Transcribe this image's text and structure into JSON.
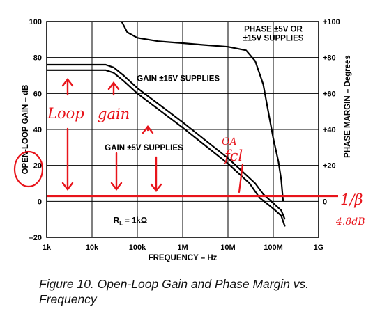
{
  "caption": "Figure 10.  Open-Loop Gain and Phase Margin vs. Frequency",
  "chart_data": {
    "type": "line",
    "xlabel": "FREQUENCY – Hz",
    "ylabel_left": "OPEN-LOOP GAIN – dB",
    "ylabel_right": "PHASE MARGIN – Degrees",
    "x_scale": "log",
    "xlim": [
      1000,
      1000000000
    ],
    "ylim_left": [
      -20,
      100
    ],
    "ylim_right": [
      -20,
      100
    ],
    "x_ticks": [
      {
        "value": 1000,
        "label": "1k"
      },
      {
        "value": 10000,
        "label": "10k"
      },
      {
        "value": 100000,
        "label": "100k"
      },
      {
        "value": 1000000,
        "label": "1M"
      },
      {
        "value": 10000000,
        "label": "10M"
      },
      {
        "value": 100000000,
        "label": "100M"
      },
      {
        "value": 1000000000,
        "label": "1G"
      }
    ],
    "y_ticks_left": [
      {
        "value": 100,
        "label": "100"
      },
      {
        "value": 80,
        "label": "80"
      },
      {
        "value": 60,
        "label": "60"
      },
      {
        "value": 40,
        "label": "40"
      },
      {
        "value": 20,
        "label": "20"
      },
      {
        "value": 0,
        "label": "0"
      },
      {
        "value": -20,
        "label": "–20"
      }
    ],
    "y_ticks_right": [
      {
        "value": 100,
        "label": "+100"
      },
      {
        "value": 80,
        "label": "+80"
      },
      {
        "value": 60,
        "label": "+60"
      },
      {
        "value": 40,
        "label": "+40"
      },
      {
        "value": 20,
        "label": "+20"
      },
      {
        "value": 0,
        "label": "0"
      }
    ],
    "grid": true,
    "series": [
      {
        "key": "gain_15v",
        "label": "GAIN ±15V SUPPLIES",
        "axis": "left",
        "points": [
          [
            1000,
            76
          ],
          [
            20000,
            76
          ],
          [
            30000,
            74.5
          ],
          [
            50000,
            70
          ],
          [
            100000,
            63
          ],
          [
            1000000,
            44
          ],
          [
            10000000,
            24
          ],
          [
            40000000,
            10
          ],
          [
            60000000,
            4
          ],
          [
            100000000,
            -1
          ],
          [
            150000000,
            -5
          ],
          [
            180000000,
            -10
          ]
        ]
      },
      {
        "key": "gain_5v",
        "label": "GAIN ±5V SUPPLIES",
        "axis": "left",
        "points": [
          [
            1000,
            73
          ],
          [
            20000,
            73
          ],
          [
            30000,
            71.5
          ],
          [
            50000,
            67
          ],
          [
            100000,
            60
          ],
          [
            1000000,
            41
          ],
          [
            10000000,
            21
          ],
          [
            30000000,
            10
          ],
          [
            50000000,
            2
          ],
          [
            100000000,
            -4
          ],
          [
            150000000,
            -8
          ],
          [
            180000000,
            -14
          ]
        ]
      },
      {
        "key": "phase",
        "label": "PHASE ±5V OR ±15V SUPPLIES",
        "axis": "right",
        "points": [
          [
            45000,
            100
          ],
          [
            60000,
            94
          ],
          [
            100000,
            91
          ],
          [
            300000,
            89
          ],
          [
            1000000,
            88
          ],
          [
            3000000,
            87
          ],
          [
            10000000,
            86
          ],
          [
            25000000,
            84
          ],
          [
            40000000,
            78
          ],
          [
            60000000,
            65
          ],
          [
            80000000,
            48
          ],
          [
            100000000,
            35
          ],
          [
            130000000,
            22
          ],
          [
            150000000,
            12
          ],
          [
            165000000,
            0
          ]
        ]
      }
    ],
    "annotations": [
      {
        "text": "PHASE ±5V OR",
        "x": 100000000,
        "y": 96
      },
      {
        "text": "±15V SUPPLIES",
        "x": 100000000,
        "y": 91
      },
      {
        "text": "GAIN ±15V SUPPLIES",
        "x": 800000,
        "y": 68.5
      },
      {
        "text": "GAIN ±5V SUPPLIES",
        "x": 140000,
        "y": 30
      },
      {
        "text": "R",
        "x": 70000,
        "y": -10.5
      },
      {
        "text": "L",
        "x": 70000,
        "y": -10.5
      },
      {
        "text": " = 1kΩ",
        "x": 70000,
        "y": -10.5
      }
    ],
    "handwritten": {
      "loop": "Loop",
      "gain": "gain",
      "oa": "OA",
      "fcl": "fcl",
      "beta": "1/β",
      "beta_value": "4.8dB",
      "line_level_db": 3,
      "color": "#e8141b"
    }
  }
}
